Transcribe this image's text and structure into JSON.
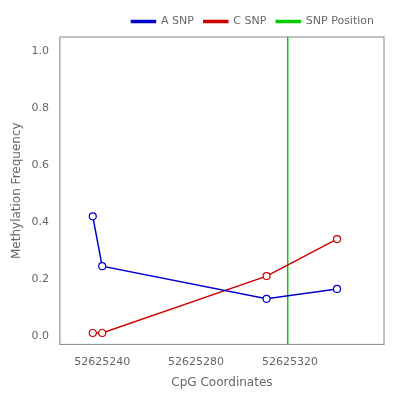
{
  "chart_data": {
    "type": "line",
    "xlabel": "CpG Coordinates",
    "ylabel": "Methylation Frequency",
    "x": [
      52625236,
      52625240,
      52625310,
      52625340
    ],
    "series": [
      {
        "name": "A SNP",
        "color": "#0000cc",
        "values": [
          0.42,
          0.245,
          0.13,
          0.165
        ],
        "marker": "circle",
        "line_style": "solid"
      },
      {
        "name": "C SNP",
        "color": "#cc0000",
        "values": [
          0.01,
          0.01,
          0.21,
          0.34
        ],
        "marker": "circle",
        "line_style": "solid"
      },
      {
        "name": "SNP Position",
        "color": "#00cc00",
        "type": "vline",
        "value": 52625319,
        "line_style": "solid"
      }
    ],
    "xlim": [
      52625222,
      52625360
    ],
    "ylim": [
      -0.03,
      1.05
    ],
    "xticks": [
      52625240,
      52625280,
      52625320
    ],
    "yticks": [
      {
        "value": 0.0,
        "label": "0.0"
      },
      0.2,
      0.4,
      0.6,
      0.8,
      {
        "value": 1.0,
        "label": "1.0"
      }
    ],
    "grid": false,
    "legend": "upper right"
  }
}
